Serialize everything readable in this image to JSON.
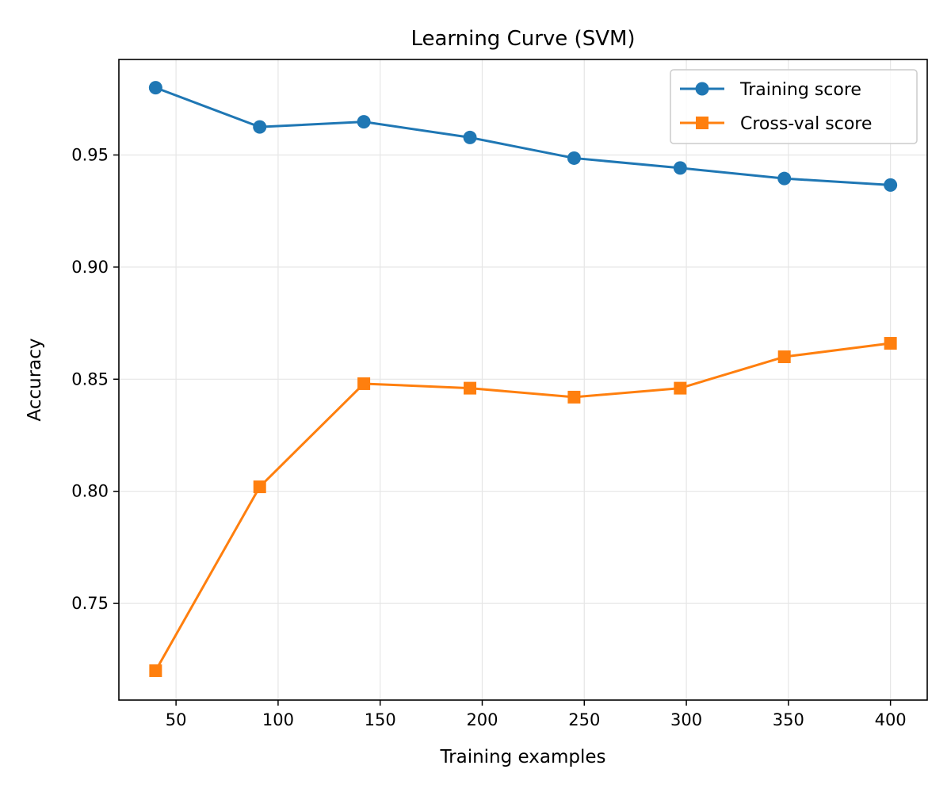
{
  "chart_data": {
    "type": "line",
    "title": "Learning Curve (SVM)",
    "xlabel": "Training examples",
    "ylabel": "Accuracy",
    "x": [
      40,
      91,
      142,
      194,
      245,
      297,
      348,
      400
    ],
    "series": [
      {
        "name": "Training score",
        "values": [
          0.98,
          0.9625,
          0.9648,
          0.9578,
          0.9486,
          0.9442,
          0.9395,
          0.9366
        ],
        "color": "#1f77b4",
        "marker": "circle"
      },
      {
        "name": "Cross-val score",
        "values": [
          0.72,
          0.802,
          0.848,
          0.846,
          0.842,
          0.846,
          0.86,
          0.866
        ],
        "color": "#ff7f0e",
        "marker": "square"
      }
    ],
    "xlim": [
      22.0,
      418.0
    ],
    "ylim": [
      0.7069,
      0.9926
    ],
    "xticks": [
      {
        "value": 50,
        "label": "50"
      },
      {
        "value": 100,
        "label": "100"
      },
      {
        "value": 150,
        "label": "150"
      },
      {
        "value": 200,
        "label": "200"
      },
      {
        "value": 250,
        "label": "250"
      },
      {
        "value": 300,
        "label": "300"
      },
      {
        "value": 350,
        "label": "350"
      },
      {
        "value": 400,
        "label": "400"
      }
    ],
    "yticks": [
      {
        "value": 0.75,
        "label": "0.75"
      },
      {
        "value": 0.8,
        "label": "0.80"
      },
      {
        "value": 0.85,
        "label": "0.85"
      },
      {
        "value": 0.9,
        "label": "0.90"
      },
      {
        "value": 0.95,
        "label": "0.95"
      }
    ],
    "grid": true,
    "legend_position": "top-right"
  }
}
